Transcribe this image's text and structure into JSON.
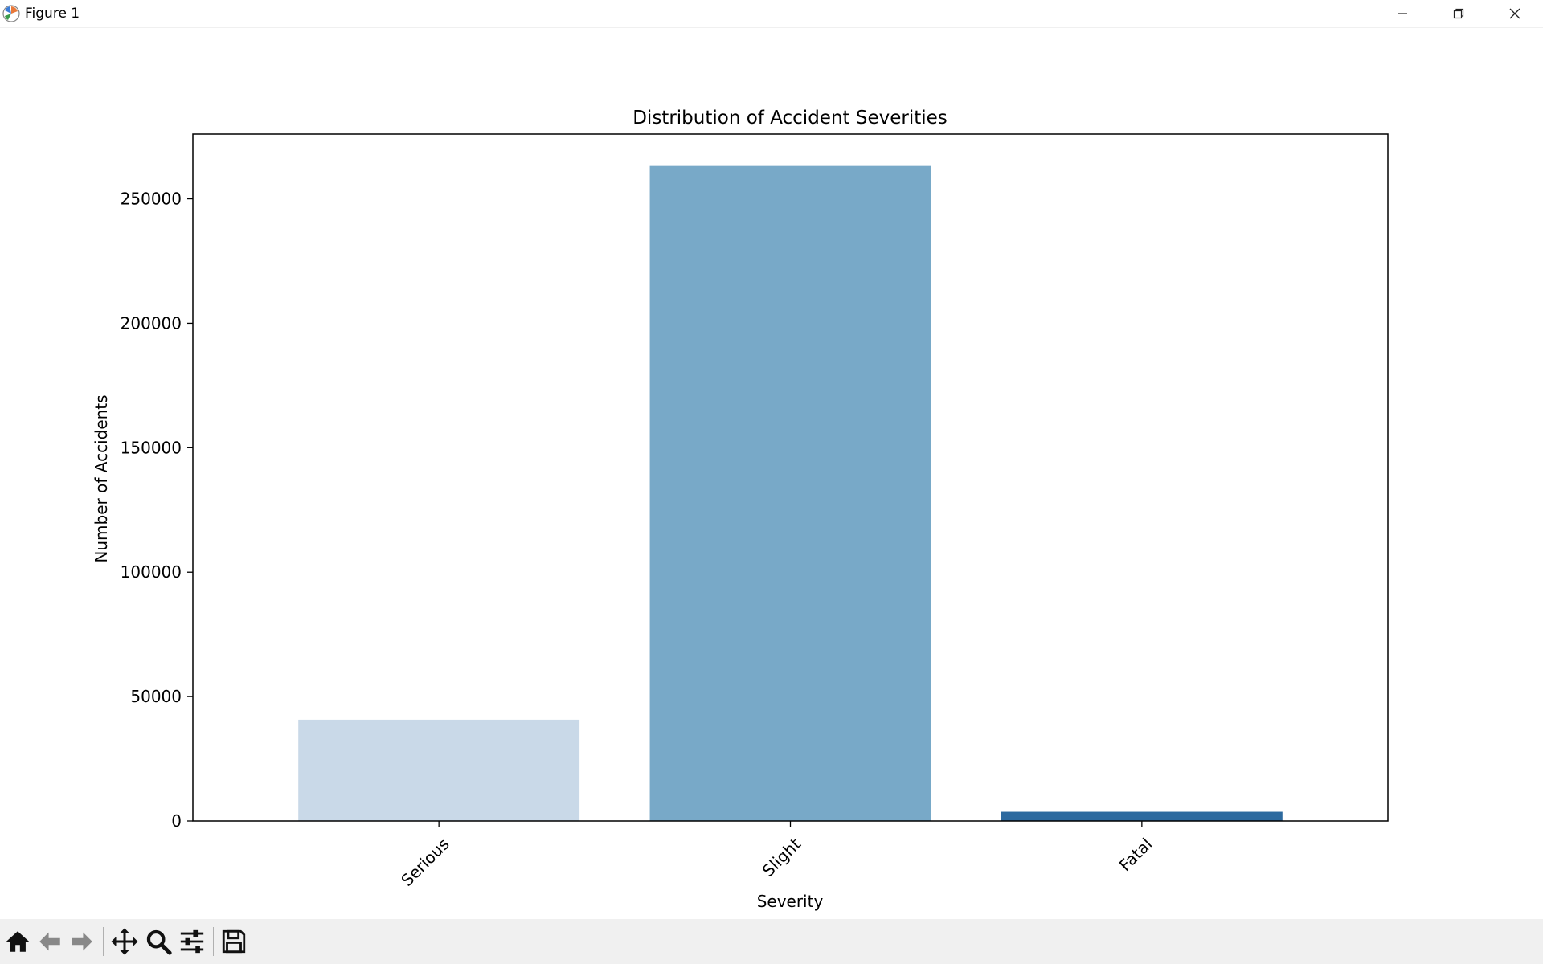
{
  "window": {
    "title": "Figure 1",
    "icons": [
      "app-icon",
      "minimize-icon",
      "maximize-icon",
      "close-icon"
    ]
  },
  "chart_data": {
    "type": "bar",
    "title": "Distribution of Accident Severities",
    "xlabel": "Severity",
    "ylabel": "Number of Accidents",
    "categories": [
      "Serious",
      "Slight",
      "Fatal"
    ],
    "values": [
      40700,
      263200,
      3700
    ],
    "colors": [
      "#c9d9e8",
      "#78a9c8",
      "#2d6a9f"
    ],
    "ylim": [
      0,
      276000
    ],
    "yticks": [
      0,
      50000,
      100000,
      150000,
      200000,
      250000
    ],
    "ytick_labels": [
      "0",
      "50000",
      "100000",
      "150000",
      "200000",
      "250000"
    ],
    "grid": false,
    "legend": "none"
  },
  "toolbar": {
    "tools": [
      {
        "name": "home-button",
        "icon": "home-icon",
        "interactable": true
      },
      {
        "name": "back-button",
        "icon": "arrow-left-icon",
        "interactable": true
      },
      {
        "name": "forward-button",
        "icon": "arrow-right-icon",
        "interactable": true
      },
      {
        "name": "pan-button",
        "icon": "move-icon",
        "interactable": true
      },
      {
        "name": "zoom-button",
        "icon": "magnifier-icon",
        "interactable": true
      },
      {
        "name": "configure-subplots-button",
        "icon": "sliders-icon",
        "interactable": true
      },
      {
        "name": "save-button",
        "icon": "floppy-disk-icon",
        "interactable": true
      }
    ]
  }
}
